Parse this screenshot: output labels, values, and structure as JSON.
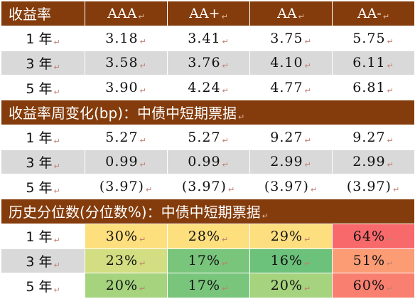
{
  "yield": {
    "label": "收益率",
    "columns": [
      "AAA",
      "AA+",
      "AA",
      "AA-"
    ],
    "rows": [
      {
        "term": "1 年",
        "values": [
          "3.18",
          "3.41",
          "3.75",
          "5.75"
        ]
      },
      {
        "term": "3 年",
        "values": [
          "3.58",
          "3.76",
          "4.10",
          "6.11"
        ]
      },
      {
        "term": "5 年",
        "values": [
          "3.90",
          "4.24",
          "4.77",
          "6.81"
        ]
      }
    ]
  },
  "weekly_change": {
    "label": "收益率周变化(bp)：中债中短期票据",
    "rows": [
      {
        "term": "1 年",
        "values": [
          "5.27",
          "5.27",
          "9.27",
          "9.27"
        ]
      },
      {
        "term": "3 年",
        "values": [
          "0.99",
          "0.99",
          "2.99",
          "2.99"
        ]
      },
      {
        "term": "5 年",
        "values": [
          "(3.97)",
          "(3.97)",
          "(3.97)",
          "(3.97)"
        ]
      }
    ]
  },
  "percentile": {
    "label": "历史分位数(分位数%)：中债中短期票据",
    "rows": [
      {
        "term": "1 年",
        "values": [
          "30%",
          "28%",
          "29%",
          "64%"
        ],
        "colors": [
          "#fddf7e",
          "#fddf7e",
          "#fedf80",
          "#f8696b"
        ]
      },
      {
        "term": "3 年",
        "values": [
          "23%",
          "17%",
          "16%",
          "51%"
        ],
        "colors": [
          "#d2de81",
          "#79c57c",
          "#6cc17b",
          "#fb9c75"
        ]
      },
      {
        "term": "5 年",
        "values": [
          "20%",
          "17%",
          "20%",
          "60%"
        ],
        "colors": [
          "#a5d37e",
          "#79c57c",
          "#a5d37e",
          "#f97f70"
        ]
      }
    ]
  },
  "colors": {
    "header_bg": "#843c0c",
    "header_text": "#ffffff",
    "band_gray": "#d9d9d9",
    "negative_text": "#e00000"
  }
}
